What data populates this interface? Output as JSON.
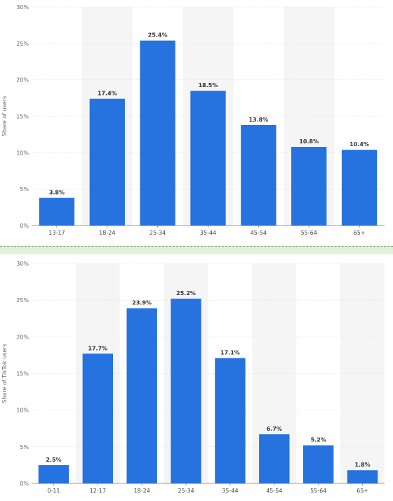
{
  "colors": {
    "bar": "#2672de",
    "band": "#f5f5f5",
    "grid": "#dddddd",
    "axis": "#999999"
  },
  "chart_data": [
    {
      "type": "bar",
      "title": "",
      "xlabel": "",
      "ylabel": "Share of users",
      "ylim": [
        0,
        30
      ],
      "yticks": [
        "0%",
        "5%",
        "10%",
        "15%",
        "20%",
        "25%",
        "30%"
      ],
      "categories": [
        "13-17",
        "18-24",
        "25-34",
        "35-44",
        "45-54",
        "55-64",
        "65+"
      ],
      "values": [
        3.8,
        17.4,
        25.4,
        18.5,
        13.8,
        10.8,
        10.4
      ],
      "value_labels": [
        "3.8%",
        "17.4%",
        "25.4%",
        "18.5%",
        "13.8%",
        "10.8%",
        "10.4%"
      ],
      "grid": true
    },
    {
      "type": "bar",
      "title": "",
      "xlabel": "",
      "ylabel": "Share of TikTok users",
      "ylim": [
        0,
        30
      ],
      "yticks": [
        "0%",
        "5%",
        "10%",
        "15%",
        "20%",
        "25%",
        "30%"
      ],
      "categories": [
        "0-11",
        "12-17",
        "18-24",
        "25-34",
        "35-44",
        "45-54",
        "55-64",
        "65+"
      ],
      "values": [
        2.5,
        17.7,
        23.9,
        25.2,
        17.1,
        6.7,
        5.2,
        1.8
      ],
      "value_labels": [
        "2.5%",
        "17.7%",
        "23.9%",
        "25.2%",
        "17.1%",
        "6.7%",
        "5.2%",
        "1.8%"
      ],
      "grid": true
    }
  ]
}
